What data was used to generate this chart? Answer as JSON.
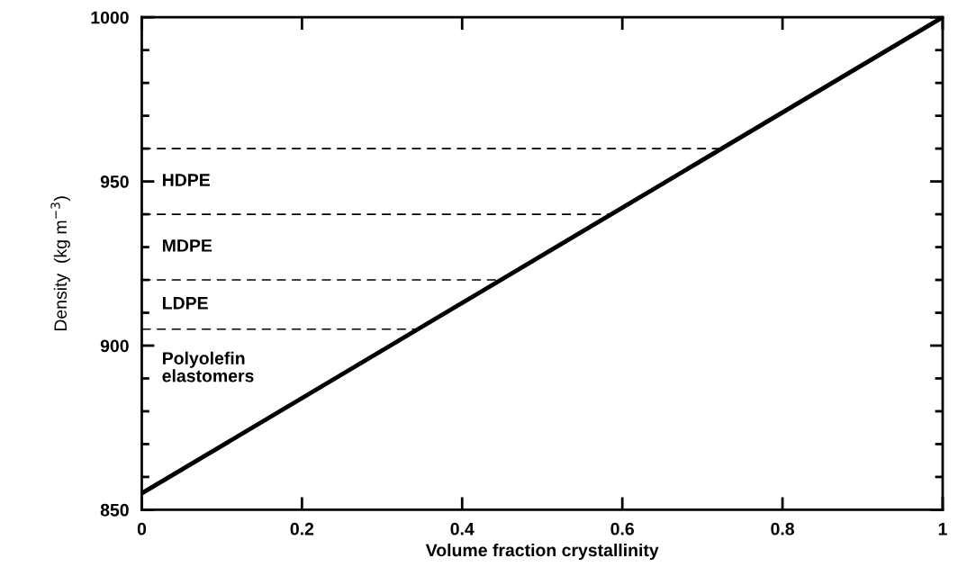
{
  "chart_data": {
    "type": "line",
    "xlabel": "Volume fraction crystallinity",
    "ylabel": "Density  (kg m$^{−3}$)",
    "xlim": [
      0,
      1
    ],
    "ylim": [
      850,
      1000
    ],
    "xticks": [
      {
        "value": 0,
        "label": "0"
      },
      0.2,
      0.4,
      0.6,
      0.8,
      {
        "value": 1,
        "label": "1"
      }
    ],
    "yticks": [
      850,
      {
        "value": 860,
        "label": null
      },
      {
        "value": 870,
        "label": null
      },
      {
        "value": 880,
        "label": null
      },
      {
        "value": 890,
        "label": null
      },
      900,
      {
        "value": 910,
        "label": null
      },
      {
        "value": 920,
        "label": null
      },
      {
        "value": 930,
        "label": null
      },
      {
        "value": 940,
        "label": null
      },
      950,
      {
        "value": 960,
        "label": null
      },
      {
        "value": 970,
        "label": null
      },
      {
        "value": 980,
        "label": null
      },
      {
        "value": 990,
        "label": null
      },
      1000
    ],
    "grid": false,
    "marker": "none",
    "series": [
      {
        "color": "#000000",
        "x": [
          0,
          1
        ],
        "values": [
          855,
          1000
        ],
        "line_style": "solid"
      },
      {
        "color": "#000000",
        "x": [
          0,
          0.724
        ],
        "values": [
          960,
          960
        ],
        "line_style": "dashed"
      },
      {
        "color": "#000000",
        "x": [
          0,
          0.586
        ],
        "values": [
          940,
          940
        ],
        "line_style": "dashed"
      },
      {
        "color": "#000000",
        "x": [
          0,
          0.448
        ],
        "values": [
          920,
          920
        ],
        "line_style": "dashed"
      },
      {
        "color": "#000000",
        "x": [
          0,
          0.345
        ],
        "values": [
          905,
          905
        ],
        "line_style": "dashed"
      }
    ],
    "annotations": [
      "HDPE",
      "MDPE",
      "LDPE",
      "Polyolefin\nelastomers"
    ]
  }
}
